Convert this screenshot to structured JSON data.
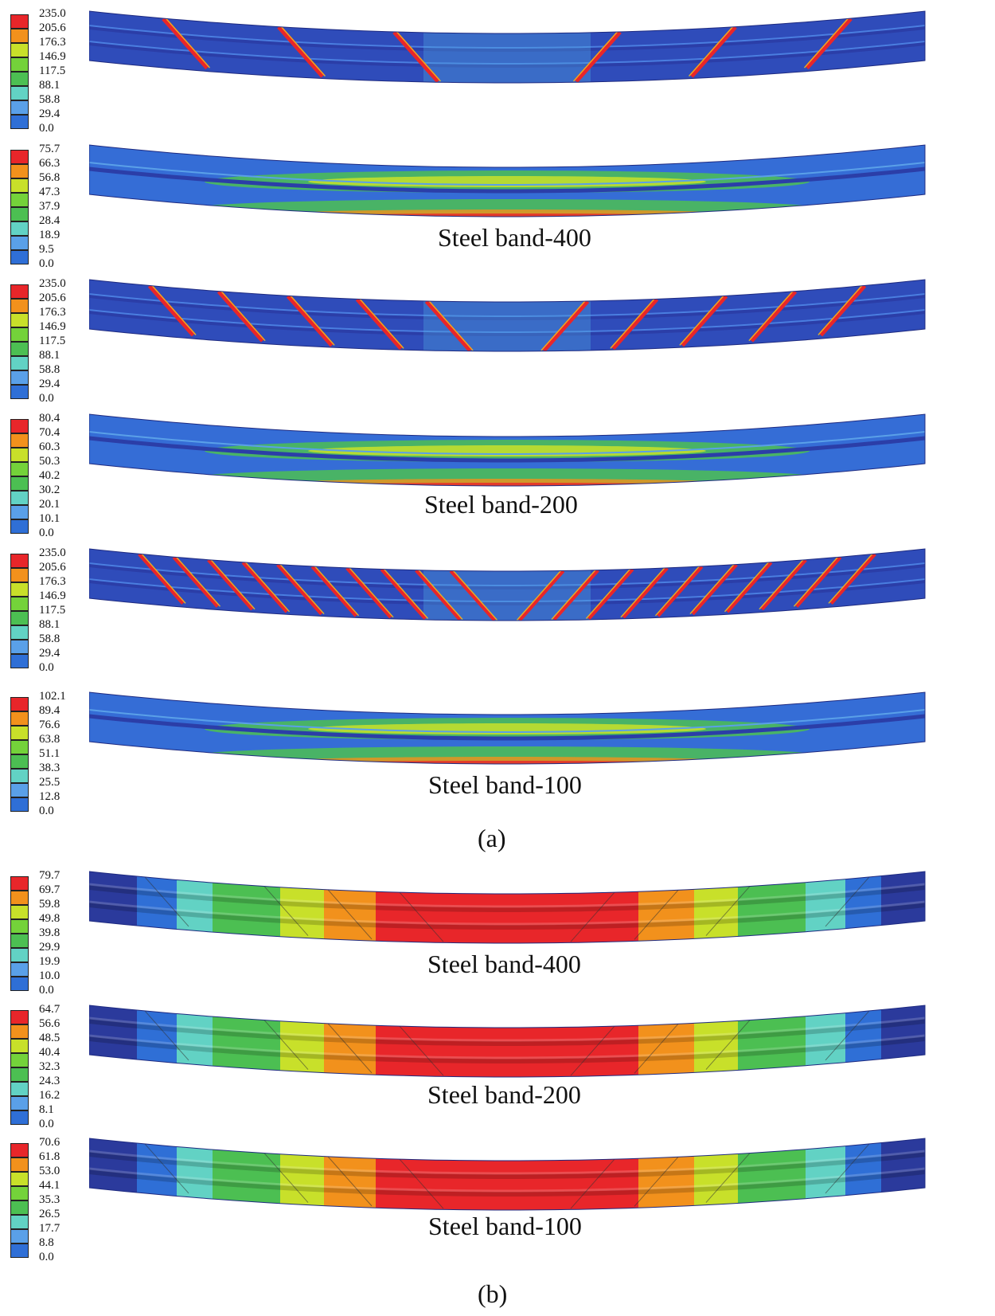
{
  "colors": {
    "scale": [
      "#2b3a9c",
      "#2f6fd6",
      "#5aa0e8",
      "#62d2c4",
      "#4cbf52",
      "#74d23a",
      "#c8e02a",
      "#f2911c",
      "#e8262a"
    ],
    "beam_dark": "#2a3fae",
    "beam_mid": "#3f6ad8",
    "band_red": "#e8262a"
  },
  "panels": {
    "a": {
      "label": "(a)",
      "subfigures": [
        {
          "legend": [
            "235.0",
            "205.6",
            "176.3",
            "146.9",
            "117.5",
            "88.1",
            "58.8",
            "29.4",
            "0.0"
          ],
          "kind": "steel",
          "bands": 6,
          "caption": ""
        },
        {
          "legend": [
            "75.7",
            "66.3",
            "56.8",
            "47.3",
            "37.9",
            "28.4",
            "18.9",
            "9.5",
            "0.0"
          ],
          "kind": "concrete",
          "caption": "Steel band-400"
        },
        {
          "legend": [
            "235.0",
            "205.6",
            "176.3",
            "146.9",
            "117.5",
            "88.1",
            "58.8",
            "29.4",
            "0.0"
          ],
          "kind": "steel",
          "bands": 10,
          "caption": ""
        },
        {
          "legend": [
            "80.4",
            "70.4",
            "60.3",
            "50.3",
            "40.2",
            "30.2",
            "20.1",
            "10.1",
            "0.0"
          ],
          "kind": "concrete",
          "caption": "Steel band-200"
        },
        {
          "legend": [
            "235.0",
            "205.6",
            "176.3",
            "146.9",
            "117.5",
            "88.1",
            "58.8",
            "29.4",
            "0.0"
          ],
          "kind": "steel",
          "bands": 20,
          "caption": ""
        },
        {
          "legend": [
            "102.1",
            "89.4",
            "76.6",
            "63.8",
            "51.1",
            "38.3",
            "25.5",
            "12.8",
            "0.0"
          ],
          "kind": "concrete",
          "caption": "Steel band-100"
        }
      ]
    },
    "b": {
      "label": "(b)",
      "subfigures": [
        {
          "legend": [
            "79.7",
            "69.7",
            "59.8",
            "49.8",
            "39.8",
            "29.9",
            "19.9",
            "10.0",
            "0.0"
          ],
          "kind": "deflection",
          "caption": "Steel band-400"
        },
        {
          "legend": [
            "64.7",
            "56.6",
            "48.5",
            "40.4",
            "32.3",
            "24.3",
            "16.2",
            "8.1",
            "0.0"
          ],
          "kind": "deflection",
          "caption": "Steel band-200"
        },
        {
          "legend": [
            "70.6",
            "61.8",
            "53.0",
            "44.1",
            "35.3",
            "26.5",
            "17.7",
            "8.8",
            "0.0"
          ],
          "kind": "deflection",
          "caption": "Steel band-100"
        }
      ]
    }
  }
}
